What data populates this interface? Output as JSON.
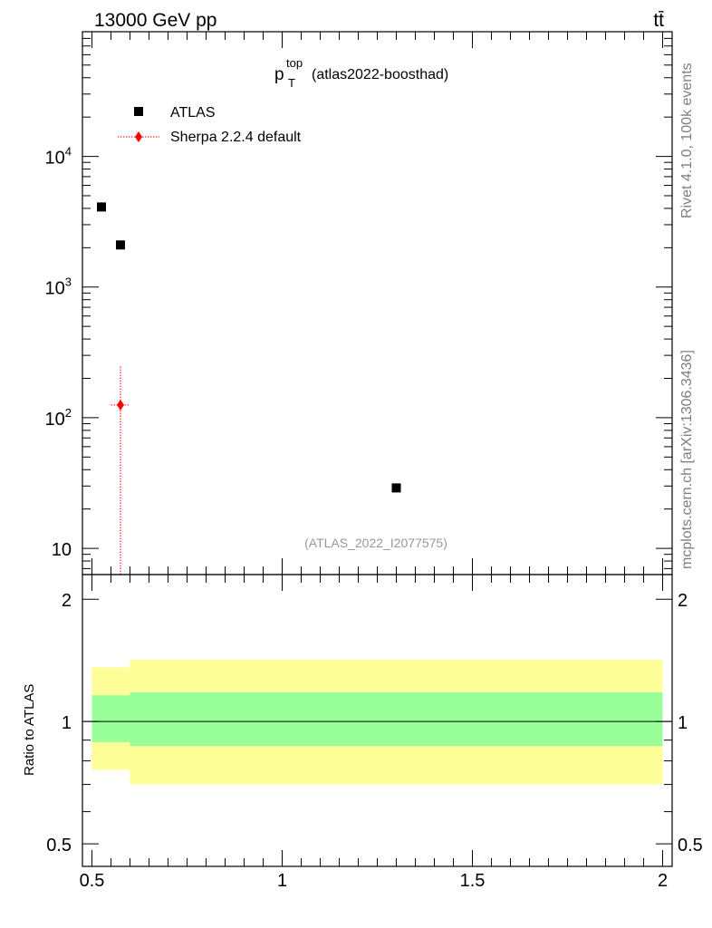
{
  "header": {
    "left_label": "13000 GeV pp",
    "right_label": "tt̄"
  },
  "side_labels": {
    "rivet": "Rivet 4.1.0,  100k events",
    "mcplots": "mcplots.cern.ch [arXiv:1306.3436]"
  },
  "analysis_id": "(ATLAS_2022_I2077575)",
  "chart_data": [
    {
      "type": "scatter",
      "title": {
        "main": "p",
        "superscript": "top",
        "subscript": "T",
        "suffix": "(atlas2022-boosthad)"
      },
      "yscale": "log",
      "ylim": [
        6.3,
        90000
      ],
      "xlim": [
        0.475,
        2.025
      ],
      "ytick_labels": [
        {
          "value": 10,
          "base": "10",
          "exp": ""
        },
        {
          "value": 100,
          "base": "10",
          "exp": "2"
        },
        {
          "value": 1000,
          "base": "10",
          "exp": "3"
        },
        {
          "value": 10000,
          "base": "10",
          "exp": "4"
        }
      ],
      "legend_position": "top-left",
      "series": [
        {
          "name": "ATLAS",
          "marker": "square",
          "color": "#000000",
          "points": [
            {
              "x": 0.525,
              "y": 4100
            },
            {
              "x": 0.575,
              "y": 2100
            },
            {
              "x": 1.3,
              "y": 29
            }
          ]
        },
        {
          "name": "Sherpa 2.2.4 default",
          "marker": "diamond",
          "color": "#ff0000",
          "line_style": "dotted",
          "points": [
            {
              "x": 0.575,
              "y": 125,
              "xerr": [
                0.55,
                0.6
              ],
              "yerr": [
                6.3,
                250
              ]
            }
          ]
        }
      ]
    },
    {
      "type": "area",
      "ylabel": "Ratio to ATLAS",
      "yscale": "log",
      "ylim": [
        0.44,
        2.3
      ],
      "xlim": [
        0.475,
        2.025
      ],
      "ytick_labels": [
        {
          "value": 0.5,
          "label": "0.5"
        },
        {
          "value": 1,
          "label": "1"
        },
        {
          "value": 2,
          "label": "2"
        }
      ],
      "xtick_labels": [
        {
          "value": 0.5,
          "label": "0.5"
        },
        {
          "value": 1,
          "label": "1"
        },
        {
          "value": 1.5,
          "label": "1.5"
        },
        {
          "value": 2,
          "label": "2"
        }
      ],
      "reference_line": 1,
      "bands": [
        {
          "name": "total uncertainty",
          "color": "#ffff99",
          "segments": [
            {
              "x0": 0.5,
              "x1": 0.6,
              "low": 0.76,
              "high": 1.36
            },
            {
              "x0": 0.6,
              "x1": 2.0,
              "low": 0.7,
              "high": 1.42
            }
          ]
        },
        {
          "name": "statistical uncertainty",
          "color": "#99ff99",
          "segments": [
            {
              "x0": 0.5,
              "x1": 0.6,
              "low": 0.89,
              "high": 1.16
            },
            {
              "x0": 0.6,
              "x1": 2.0,
              "low": 0.87,
              "high": 1.18
            }
          ]
        }
      ]
    }
  ]
}
